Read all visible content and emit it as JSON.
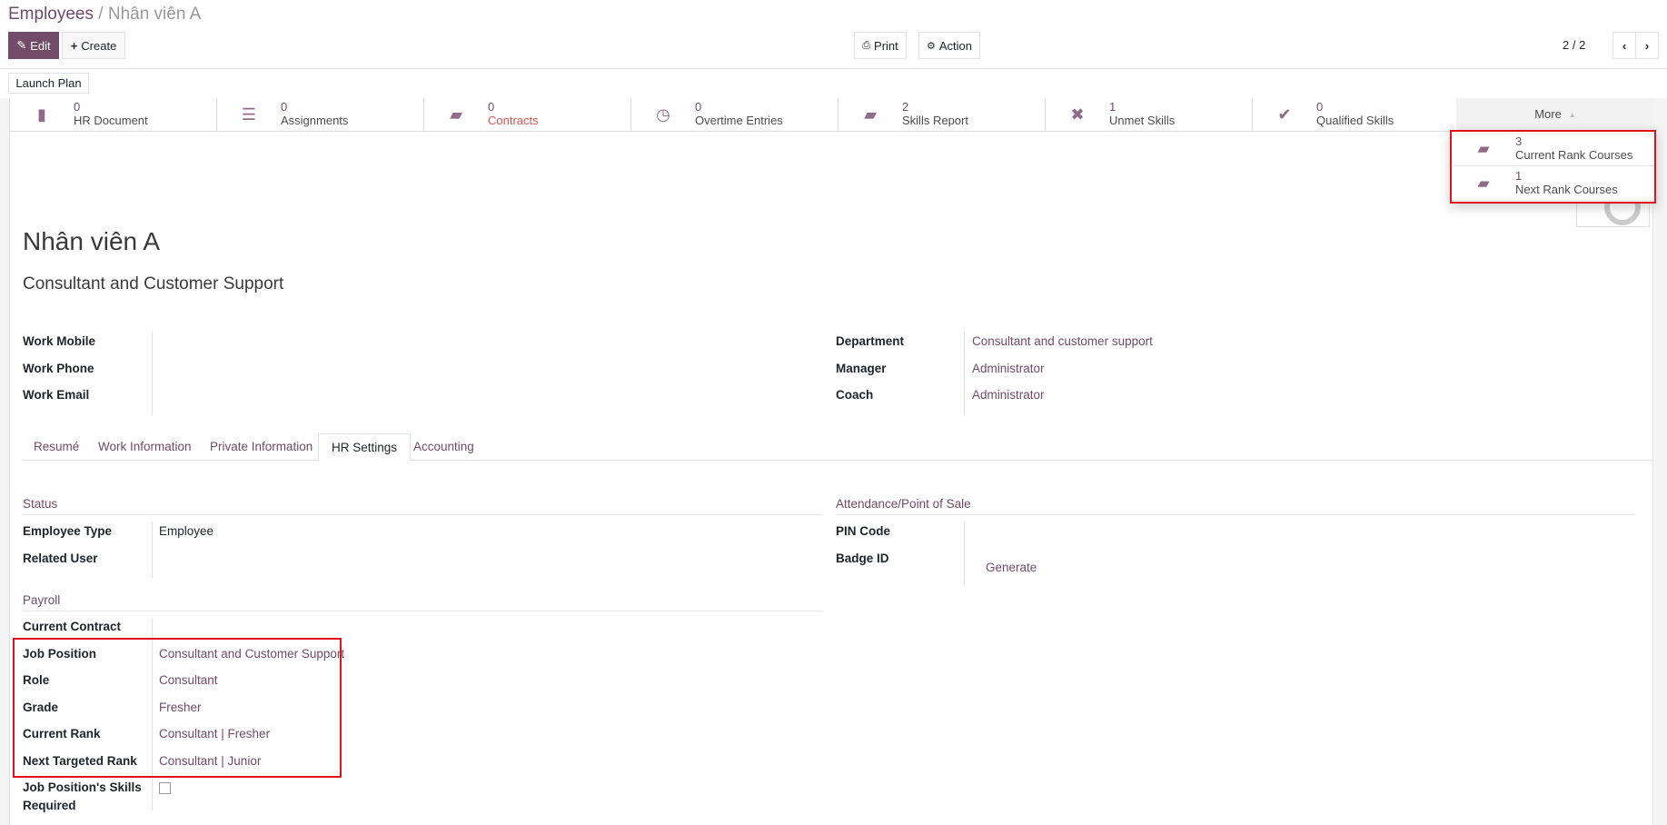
{
  "breadcrumb": {
    "parent": "Employees",
    "current": "Nhân viên A"
  },
  "toolbar": {
    "edit": "Edit",
    "create": "Create",
    "print": "Print",
    "action": "Action",
    "pager": "2 / 2",
    "launch_plan": "Launch Plan"
  },
  "stats": [
    {
      "icon": "file-icon",
      "count": "0",
      "label": "HR Document"
    },
    {
      "icon": "server-icon",
      "count": "0",
      "label": "Assignments"
    },
    {
      "icon": "book-icon",
      "count": "0",
      "label": "Contracts"
    },
    {
      "icon": "clock-icon",
      "count": "0",
      "label": "Overtime Entries"
    },
    {
      "icon": "book-icon",
      "count": "2",
      "label": "Skills Report"
    },
    {
      "icon": "times-icon",
      "count": "1",
      "label": "Unmet Skills"
    },
    {
      "icon": "check-icon",
      "count": "0",
      "label": "Qualified Skills"
    }
  ],
  "more": {
    "label": "More",
    "items": [
      {
        "icon": "book-icon",
        "count": "3",
        "label": "Current Rank Courses"
      },
      {
        "icon": "book-icon",
        "count": "1",
        "label": "Next Rank Courses"
      }
    ]
  },
  "employee": {
    "name": "Nhân viên A",
    "job_title": "Consultant and Customer Support"
  },
  "fields_left": [
    {
      "label": "Work Mobile",
      "value": ""
    },
    {
      "label": "Work Phone",
      "value": ""
    },
    {
      "label": "Work Email",
      "value": ""
    }
  ],
  "fields_right": [
    {
      "label": "Department",
      "value": "Consultant and customer support"
    },
    {
      "label": "Manager",
      "value": "Administrator"
    },
    {
      "label": "Coach",
      "value": "Administrator"
    }
  ],
  "tabs": [
    "Resumé",
    "Work Information",
    "Private Information",
    "HR Settings",
    "Accounting"
  ],
  "active_tab": "HR Settings",
  "status": {
    "title": "Status",
    "rows": [
      {
        "label": "Employee Type",
        "value": "Employee"
      },
      {
        "label": "Related User",
        "value": ""
      }
    ]
  },
  "attendance": {
    "title": "Attendance/Point of Sale",
    "rows": [
      {
        "label": "PIN Code",
        "value": ""
      },
      {
        "label": "Badge ID",
        "value": ""
      }
    ],
    "generate": "Generate"
  },
  "payroll": {
    "title": "Payroll",
    "rows": [
      {
        "label": "Current Contract",
        "value": ""
      },
      {
        "label": "Job Position",
        "value": "Consultant and Customer Support"
      },
      {
        "label": "Role",
        "value": "Consultant"
      },
      {
        "label": "Grade",
        "value": "Fresher"
      },
      {
        "label": "Current Rank",
        "value": "Consultant | Fresher"
      },
      {
        "label": "Next Targeted Rank",
        "value": "Consultant | Junior"
      }
    ],
    "skills_required_label_1": "Job Position's Skills",
    "skills_required_label_2": "Required",
    "skills_required_checked": false
  },
  "colors": {
    "brand": "#714B67",
    "highlight": "#e0131b",
    "contracts_label": "#d9534f"
  }
}
